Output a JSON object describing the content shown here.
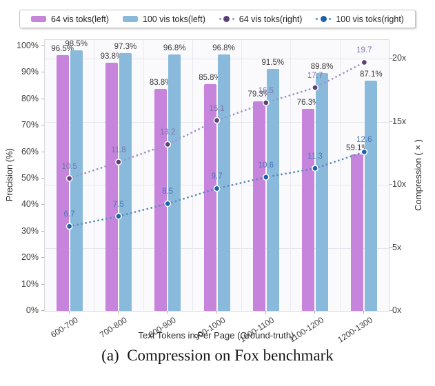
{
  "figure": {
    "caption": "(a)  Compression on Fox benchmark"
  },
  "chart_data": {
    "type": "bar",
    "subtype": "grouped bars (left axis) + dotted marker lines (right axis)",
    "title": "",
    "categories": [
      "600-700",
      "700-800",
      "800-900",
      "900-1000",
      "1000-1100",
      "1100-1200",
      "1200-1300"
    ],
    "xlabel": "Text Tokens in Per Page (Ground-truth)",
    "left_axis": {
      "label": "Precision (%)",
      "ticks": [
        "0%",
        "10%",
        "20%",
        "30%",
        "40%",
        "50%",
        "60%",
        "70%",
        "80%",
        "90%",
        "100%"
      ],
      "range": [
        0,
        100
      ]
    },
    "right_axis": {
      "label": "Compression (×)",
      "ticks": [
        "0x",
        "5x",
        "10x",
        "15x",
        "20x"
      ],
      "range": [
        0,
        20
      ]
    },
    "grid": "horizontal lines at right-axis ticks, vertical lines at category boundaries",
    "legend_position": "top",
    "series": [
      {
        "name": "64 vis toks(left)",
        "kind": "bar",
        "axis": "left",
        "color": "#c684dc",
        "values": [
          96.5,
          93.8,
          83.8,
          85.8,
          79.3,
          76.3,
          59.1
        ],
        "labels": [
          "96.5%",
          "93.8%",
          "83.8%",
          "85.8%",
          "79.3%",
          "76.3%",
          "59.1%"
        ],
        "label_color": "#3a3a3a"
      },
      {
        "name": "100 vis toks(left)",
        "kind": "bar",
        "axis": "left",
        "color": "#8abadb",
        "values": [
          98.5,
          97.3,
          96.8,
          96.8,
          91.5,
          89.8,
          87.1
        ],
        "labels": [
          "98.5%",
          "97.3%",
          "96.8%",
          "96.8%",
          "91.5%",
          "89.8%",
          "87.1%"
        ],
        "label_color": "#3a3a3a"
      },
      {
        "name": "64 vis toks(right)",
        "kind": "line",
        "axis": "right",
        "line_color": "#9e95cc",
        "marker_color": "#5e3f78",
        "label_color": "#7b72a6",
        "values": [
          10.5,
          11.8,
          13.2,
          15.1,
          16.5,
          17.7,
          19.7
        ],
        "labels": [
          "10.5",
          "11.8",
          "13.2",
          "15.1",
          "16.5",
          "17.7",
          "19.7"
        ]
      },
      {
        "name": "100 vis toks(right)",
        "kind": "line",
        "axis": "right",
        "line_color": "#6289ba",
        "marker_color": "#1d61a8",
        "label_color": "#4377b6",
        "values": [
          6.7,
          7.5,
          8.5,
          9.7,
          10.6,
          11.3,
          12.6
        ],
        "labels": [
          "6.7",
          "7.5",
          "8.5",
          "9.7",
          "10.6",
          "11.3",
          "12.6"
        ]
      }
    ]
  }
}
